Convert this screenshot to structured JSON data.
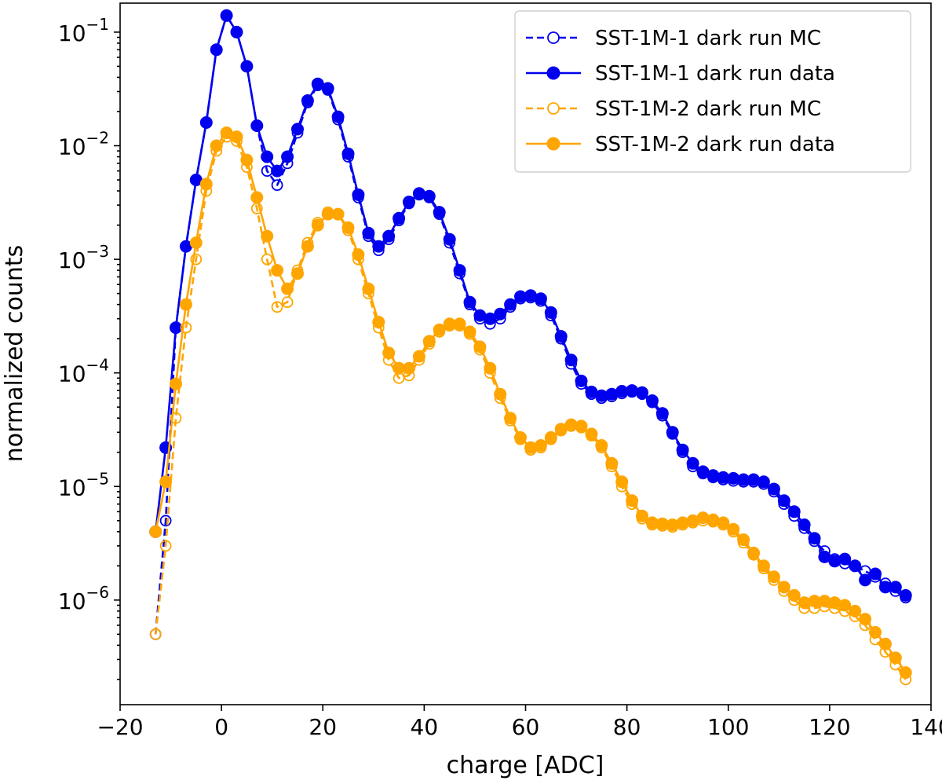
{
  "chart_data": {
    "type": "line",
    "xlabel": "charge [ADC]",
    "ylabel": "normalized counts",
    "xlim": [
      -20,
      140
    ],
    "ylim": [
      1.2e-07,
      0.18
    ],
    "yscale": "log",
    "legend_position": "top-right",
    "xticks": [
      -20,
      0,
      20,
      40,
      60,
      80,
      100,
      120,
      140
    ],
    "xtick_labels": [
      "−20",
      "0",
      "20",
      "40",
      "60",
      "80",
      "100",
      "120",
      "140"
    ],
    "yticks": [
      0.1,
      0.01,
      0.001,
      0.0001,
      1e-05,
      1e-06
    ],
    "ytick_labels": [
      {
        "base": "10",
        "exp": "−1"
      },
      {
        "base": "10",
        "exp": "−2"
      },
      {
        "base": "10",
        "exp": "−3"
      },
      {
        "base": "10",
        "exp": "−4"
      },
      {
        "base": "10",
        "exp": "−5"
      },
      {
        "base": "10",
        "exp": "−6"
      }
    ],
    "series": [
      {
        "name": "SST-1M-1 dark run MC",
        "color": "#0000ee",
        "linestyle": "dashed",
        "marker": "open-circle",
        "x": [
          -13,
          -11,
          -9,
          -7,
          -5,
          -3,
          -1,
          1,
          3,
          5,
          7,
          9,
          11,
          13,
          15,
          17,
          19,
          21,
          23,
          25,
          27,
          29,
          31,
          33,
          35,
          37,
          39,
          41,
          43,
          45,
          47,
          49,
          51,
          53,
          55,
          57,
          59,
          61,
          63,
          65,
          67,
          69,
          71,
          73,
          75,
          77,
          79,
          81,
          83,
          85,
          87,
          89,
          91,
          93,
          95,
          97,
          99,
          101,
          103,
          105,
          107,
          109,
          111,
          113,
          115,
          117,
          119,
          121,
          123,
          125,
          127,
          129,
          131,
          133,
          135
        ],
        "y": [
          5e-07,
          5e-06,
          0.00025,
          0.0013,
          0.005,
          0.016,
          0.07,
          0.14,
          0.1,
          0.05,
          0.015,
          0.006,
          0.0045,
          0.007,
          0.013,
          0.024,
          0.034,
          0.031,
          0.017,
          0.008,
          0.0035,
          0.0016,
          0.0012,
          0.0015,
          0.0022,
          0.0031,
          0.0037,
          0.0035,
          0.0025,
          0.0014,
          0.00075,
          0.0004,
          0.0003,
          0.00027,
          0.0003,
          0.00038,
          0.00045,
          0.00046,
          0.00043,
          0.00032,
          0.0002,
          0.00012,
          8e-05,
          6.5e-05,
          6e-05,
          6.2e-05,
          6.6e-05,
          6.8e-05,
          6.5e-05,
          5.5e-05,
          4.2e-05,
          2.9e-05,
          2e-05,
          1.5e-05,
          1.3e-05,
          1.2e-05,
          1.15e-05,
          1.12e-05,
          1.1e-05,
          1.1e-05,
          1.05e-05,
          9e-06,
          7e-06,
          5.5e-06,
          4.3e-06,
          3.3e-06,
          2.7e-06,
          2.3e-06,
          2.1e-06,
          2e-06,
          1.8e-06,
          1.6e-06,
          1.4e-06,
          1.2e-06,
          1.05e-06
        ]
      },
      {
        "name": "SST-1M-1 dark run data",
        "color": "#0000ee",
        "linestyle": "solid",
        "marker": "filled-circle",
        "x": [
          -13,
          -11,
          -9,
          -7,
          -5,
          -3,
          -1,
          1,
          3,
          5,
          7,
          9,
          11,
          13,
          15,
          17,
          19,
          21,
          23,
          25,
          27,
          29,
          31,
          33,
          35,
          37,
          39,
          41,
          43,
          45,
          47,
          49,
          51,
          53,
          55,
          57,
          59,
          61,
          63,
          65,
          67,
          69,
          71,
          73,
          75,
          77,
          79,
          81,
          83,
          85,
          87,
          89,
          91,
          93,
          95,
          97,
          99,
          101,
          103,
          105,
          107,
          109,
          111,
          113,
          115,
          117,
          119,
          121,
          123,
          125,
          127,
          129,
          131,
          133,
          135
        ],
        "y": [
          4e-06,
          2.2e-05,
          0.00025,
          0.0013,
          0.005,
          0.016,
          0.07,
          0.14,
          0.1,
          0.05,
          0.015,
          0.008,
          0.006,
          0.008,
          0.014,
          0.025,
          0.035,
          0.032,
          0.018,
          0.0085,
          0.0037,
          0.0017,
          0.0013,
          0.0016,
          0.0023,
          0.0032,
          0.0038,
          0.0036,
          0.0026,
          0.0015,
          0.0008,
          0.00042,
          0.00032,
          0.0003,
          0.00033,
          0.0004,
          0.00047,
          0.00048,
          0.00045,
          0.00034,
          0.00021,
          0.00013,
          8.5e-05,
          6.8e-05,
          6.3e-05,
          6.5e-05,
          6.9e-05,
          7e-05,
          6.7e-05,
          5.7e-05,
          4.4e-05,
          3e-05,
          2.1e-05,
          1.6e-05,
          1.35e-05,
          1.25e-05,
          1.2e-05,
          1.18e-05,
          1.15e-05,
          1.15e-05,
          1.1e-05,
          9.5e-06,
          7.5e-06,
          6e-06,
          4.6e-06,
          3.5e-06,
          2.4e-06,
          2.2e-06,
          2.3e-06,
          2e-06,
          1.5e-06,
          1.7e-06,
          1.3e-06,
          1.3e-06,
          1.1e-06
        ]
      },
      {
        "name": "SST-1M-2 dark run MC",
        "color": "#ffa500",
        "linestyle": "dashed",
        "marker": "open-circle",
        "x": [
          -13,
          -11,
          -9,
          -7,
          -5,
          -3,
          -1,
          1,
          3,
          5,
          7,
          9,
          11,
          13,
          15,
          17,
          19,
          21,
          23,
          25,
          27,
          29,
          31,
          33,
          35,
          37,
          39,
          41,
          43,
          45,
          47,
          49,
          51,
          53,
          55,
          57,
          59,
          61,
          63,
          65,
          67,
          69,
          71,
          73,
          75,
          77,
          79,
          81,
          83,
          85,
          87,
          89,
          91,
          93,
          95,
          97,
          99,
          101,
          103,
          105,
          107,
          109,
          111,
          113,
          115,
          117,
          119,
          121,
          123,
          125,
          127,
          129,
          131,
          133,
          135
        ],
        "y": [
          5e-07,
          3e-06,
          4e-05,
          0.00025,
          0.001,
          0.004,
          0.009,
          0.012,
          0.011,
          0.0065,
          0.0028,
          0.001,
          0.00038,
          0.00042,
          0.0008,
          0.0014,
          0.0021,
          0.0026,
          0.0025,
          0.0018,
          0.001,
          0.0005,
          0.00025,
          0.00013,
          9e-05,
          9.5e-05,
          0.00013,
          0.00018,
          0.00023,
          0.00026,
          0.00026,
          0.00022,
          0.00016,
          0.0001,
          6e-05,
          3.8e-05,
          2.6e-05,
          2.1e-05,
          2.2e-05,
          2.6e-05,
          3.1e-05,
          3.4e-05,
          3.3e-05,
          2.8e-05,
          2.2e-05,
          1.5e-05,
          1e-05,
          7e-06,
          5.2e-06,
          4.6e-06,
          4.5e-06,
          4.4e-06,
          4.6e-06,
          4.8e-06,
          5e-06,
          4.9e-06,
          4.6e-06,
          4e-06,
          3.2e-06,
          2.5e-06,
          1.9e-06,
          1.5e-06,
          1.2e-06,
          1e-06,
          8.5e-07,
          8.5e-07,
          8.8e-07,
          8.5e-07,
          8e-07,
          7.2e-07,
          6e-07,
          4.5e-07,
          3.5e-07,
          2.7e-07,
          2e-07
        ]
      },
      {
        "name": "SST-1M-2 dark run data",
        "color": "#ffa500",
        "linestyle": "solid",
        "marker": "filled-circle",
        "x": [
          -13,
          -11,
          -9,
          -7,
          -5,
          -3,
          -1,
          1,
          3,
          5,
          7,
          9,
          11,
          13,
          15,
          17,
          19,
          21,
          23,
          25,
          27,
          29,
          31,
          33,
          35,
          37,
          39,
          41,
          43,
          45,
          47,
          49,
          51,
          53,
          55,
          57,
          59,
          61,
          63,
          65,
          67,
          69,
          71,
          73,
          75,
          77,
          79,
          81,
          83,
          85,
          87,
          89,
          91,
          93,
          95,
          97,
          99,
          101,
          103,
          105,
          107,
          109,
          111,
          113,
          115,
          117,
          119,
          121,
          123,
          125,
          127,
          129,
          131,
          133,
          135
        ],
        "y": [
          4e-06,
          1.1e-05,
          8e-05,
          0.0004,
          0.0014,
          0.0046,
          0.01,
          0.013,
          0.012,
          0.0075,
          0.0035,
          0.0016,
          0.0008,
          0.00055,
          0.00075,
          0.0013,
          0.002,
          0.0025,
          0.0025,
          0.0019,
          0.0011,
          0.00055,
          0.00028,
          0.00015,
          0.00011,
          0.00011,
          0.00014,
          0.00019,
          0.00024,
          0.00027,
          0.00027,
          0.00023,
          0.00017,
          0.00011,
          6.5e-05,
          4e-05,
          2.7e-05,
          2.2e-05,
          2.3e-05,
          2.7e-05,
          3.2e-05,
          3.5e-05,
          3.4e-05,
          2.9e-05,
          2.3e-05,
          1.6e-05,
          1.1e-05,
          7.5e-06,
          5.5e-06,
          4.8e-06,
          4.7e-06,
          4.6e-06,
          4.8e-06,
          5e-06,
          5.3e-06,
          5.1e-06,
          4.8e-06,
          4.2e-06,
          3.4e-06,
          2.6e-06,
          2e-06,
          1.6e-06,
          1.3e-06,
          1.1e-06,
          9.5e-07,
          9.8e-07,
          9.8e-07,
          9.5e-07,
          9e-07,
          8e-07,
          6.8e-07,
          5.2e-07,
          4.1e-07,
          3.1e-07,
          2.3e-07
        ]
      }
    ]
  }
}
